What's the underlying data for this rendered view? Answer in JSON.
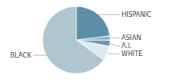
{
  "chart_data": {
    "type": "pie",
    "categories": [
      "BLACK",
      "WHITE",
      "A.I.",
      "ASIAN",
      "HISPANIC"
    ],
    "values": [
      65,
      7,
      3,
      2,
      23
    ],
    "colors": [
      "#afc5d0",
      "#dce9ee",
      "#6b96ab",
      "#8aafc2",
      "#5b8fa8"
    ]
  }
}
